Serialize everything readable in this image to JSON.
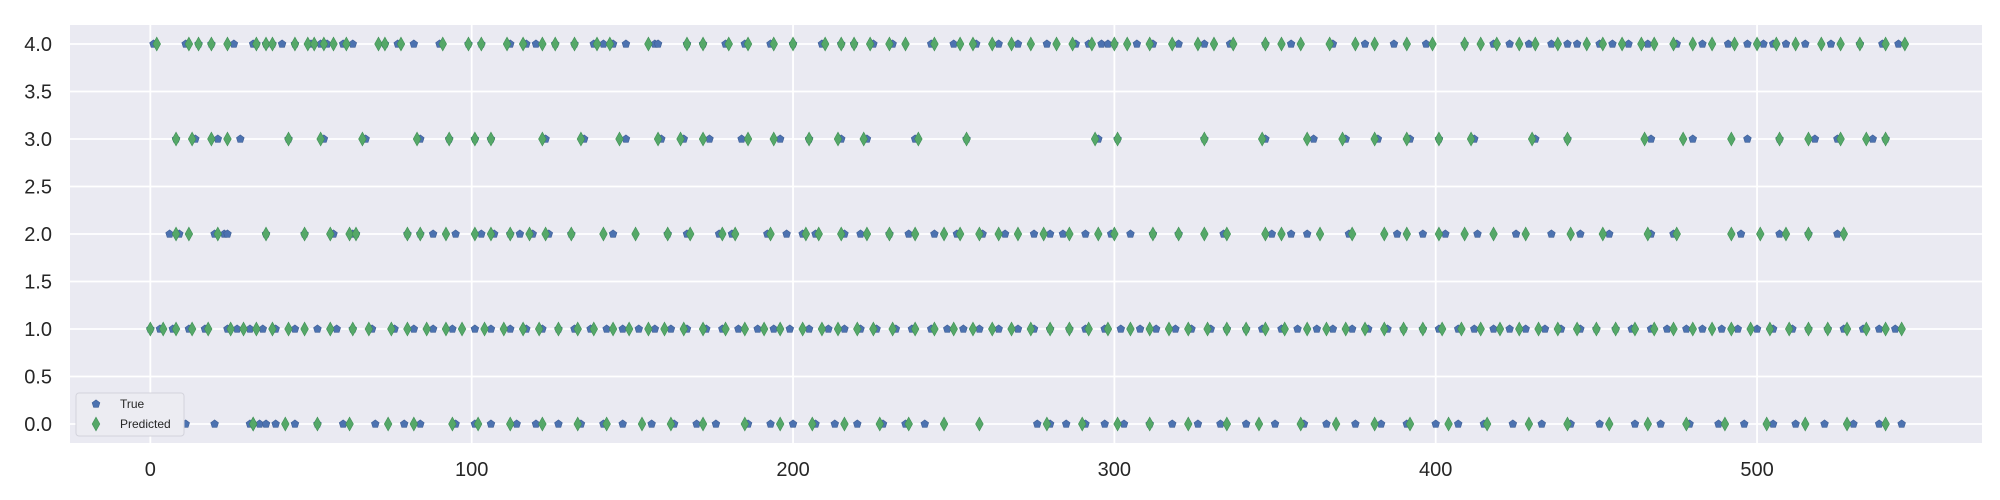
{
  "chart_data": {
    "type": "scatter",
    "title": "",
    "xlabel": "",
    "ylabel": "",
    "xlim": [
      -25,
      570
    ],
    "ylim": [
      -0.2,
      4.2
    ],
    "x_ticks": [
      0,
      100,
      200,
      300,
      400,
      500
    ],
    "y_ticks": [
      0.0,
      0.5,
      1.0,
      1.5,
      2.0,
      2.5,
      3.0,
      3.5,
      4.0
    ],
    "x_tick_labels": [
      "0",
      "100",
      "200",
      "300",
      "400",
      "500"
    ],
    "y_tick_labels": [
      "0.0",
      "0.5",
      "1.0",
      "1.5",
      "2.0",
      "2.5",
      "3.0",
      "3.5",
      "4.0"
    ],
    "grid": true,
    "legend_position": "bottom-left",
    "background": "#eaeaf2",
    "grid_color": "#ffffff",
    "colors": {
      "true": "#4c72b0",
      "predicted": "#55a868"
    },
    "legend": [
      {
        "key": "true",
        "label": "True",
        "marker": "pentagon"
      },
      {
        "key": "predicted",
        "label": "Predicted",
        "marker": "diamond"
      }
    ],
    "series": [
      {
        "key": "true",
        "name": "True",
        "marker": "pentagon",
        "points_by_class": {
          "4": [
            1,
            11,
            15,
            19,
            26,
            32,
            33,
            36,
            38,
            41,
            45,
            50,
            53,
            55,
            60,
            63,
            73,
            77,
            82,
            90,
            99,
            103,
            112,
            117,
            120,
            126,
            132,
            138,
            141,
            144,
            148,
            157,
            158,
            167,
            172,
            179,
            185,
            193,
            200,
            209,
            215,
            219,
            225,
            231,
            243,
            250,
            257,
            264,
            270,
            279,
            288,
            292,
            296,
            298,
            300,
            307,
            312,
            320,
            328,
            336,
            347,
            355,
            368,
            378,
            387,
            397,
            409,
            418,
            423,
            429,
            436,
            441,
            444,
            451,
            455,
            460,
            466,
            475,
            483,
            491,
            497,
            502,
            505,
            509,
            515,
            523,
            532,
            539,
            544
          ],
          "3": [
            8,
            14,
            21,
            28,
            43,
            54,
            67,
            84,
            93,
            101,
            106,
            123,
            135,
            148,
            159,
            166,
            174,
            184,
            196,
            205,
            215,
            223,
            238,
            254,
            295,
            301,
            328,
            347,
            362,
            372,
            382,
            392,
            401,
            412,
            431,
            441,
            467,
            480,
            497,
            507,
            518,
            525,
            536,
            540
          ],
          "2": [
            6,
            9,
            20,
            23,
            24,
            36,
            48,
            57,
            63,
            64,
            80,
            84,
            88,
            95,
            103,
            107,
            112,
            115,
            119,
            124,
            131,
            144,
            161,
            167,
            177,
            181,
            192,
            198,
            203,
            207,
            216,
            221,
            230,
            236,
            244,
            251,
            259,
            266,
            275,
            280,
            284,
            291,
            299,
            305,
            312,
            320,
            334,
            349,
            355,
            360,
            373,
            388,
            396,
            403,
            413,
            425,
            436,
            445,
            454,
            467,
            474,
            495,
            507,
            516,
            525
          ],
          "1": [
            0,
            3,
            7,
            12,
            17,
            24,
            27,
            31,
            35,
            39,
            45,
            52,
            58,
            63,
            69,
            76,
            82,
            88,
            94,
            101,
            106,
            112,
            117,
            122,
            127,
            132,
            137,
            142,
            147,
            152,
            157,
            162,
            167,
            173,
            178,
            183,
            189,
            194,
            199,
            205,
            211,
            216,
            221,
            226,
            232,
            237,
            243,
            248,
            253,
            258,
            264,
            270,
            275,
            280,
            286,
            291,
            297,
            302,
            308,
            313,
            319,
            324,
            330,
            335,
            341,
            346,
            352,
            357,
            363,
            368,
            374,
            379,
            385,
            390,
            396,
            401,
            407,
            412,
            418,
            423,
            428,
            434,
            439,
            445,
            450,
            456,
            461,
            467,
            472,
            478,
            483,
            489,
            494,
            500,
            505,
            511,
            516,
            522,
            527,
            533,
            538,
            543
          ],
          "0": [
            11,
            20,
            31,
            34,
            36,
            39,
            45,
            52,
            60,
            70,
            79,
            84,
            95,
            101,
            106,
            114,
            120,
            127,
            134,
            141,
            147,
            156,
            163,
            170,
            176,
            186,
            193,
            200,
            207,
            213,
            220,
            228,
            235,
            241,
            276,
            280,
            285,
            291,
            297,
            303,
            311,
            318,
            326,
            333,
            341,
            350,
            359,
            366,
            375,
            383,
            391,
            400,
            407,
            415,
            424,
            433,
            442,
            451,
            462,
            470,
            479,
            488,
            496,
            505,
            512,
            521,
            530,
            538,
            545
          ]
        }
      },
      {
        "key": "predicted",
        "name": "Predicted",
        "marker": "diamond",
        "points_by_class": {
          "4": [
            2,
            12,
            15,
            19,
            24,
            33,
            36,
            38,
            45,
            49,
            51,
            54,
            57,
            61,
            71,
            73,
            78,
            91,
            99,
            103,
            111,
            116,
            122,
            126,
            132,
            139,
            143,
            155,
            167,
            172,
            180,
            186,
            194,
            200,
            210,
            215,
            219,
            224,
            230,
            235,
            244,
            252,
            256,
            262,
            268,
            274,
            282,
            287,
            293,
            300,
            304,
            311,
            318,
            326,
            331,
            337,
            347,
            352,
            358,
            367,
            375,
            381,
            391,
            399,
            409,
            414,
            419,
            426,
            431,
            438,
            447,
            452,
            458,
            464,
            468,
            474,
            480,
            486,
            493,
            500,
            506,
            512,
            520,
            526,
            532,
            540,
            546
          ],
          "3": [
            8,
            13,
            19,
            24,
            43,
            53,
            66,
            83,
            93,
            101,
            106,
            122,
            134,
            146,
            158,
            165,
            172,
            186,
            194,
            205,
            214,
            222,
            239,
            254,
            294,
            301,
            328,
            346,
            360,
            371,
            381,
            391,
            401,
            411,
            430,
            441,
            465,
            477,
            492,
            507,
            516,
            526,
            534,
            540
          ],
          "2": [
            8,
            12,
            21,
            36,
            48,
            56,
            62,
            64,
            80,
            84,
            92,
            101,
            106,
            112,
            118,
            123,
            131,
            141,
            151,
            161,
            168,
            178,
            182,
            193,
            204,
            208,
            215,
            223,
            230,
            238,
            247,
            252,
            258,
            264,
            270,
            278,
            286,
            295,
            300,
            312,
            320,
            328,
            335,
            347,
            352,
            364,
            374,
            384,
            391,
            401,
            409,
            418,
            428,
            442,
            452,
            466,
            475,
            492,
            501,
            509,
            516,
            527
          ],
          "1": [
            0,
            4,
            8,
            13,
            18,
            25,
            29,
            33,
            38,
            43,
            48,
            56,
            63,
            68,
            75,
            80,
            86,
            92,
            97,
            104,
            110,
            116,
            121,
            127,
            133,
            138,
            144,
            149,
            155,
            160,
            166,
            172,
            179,
            185,
            191,
            196,
            203,
            209,
            214,
            220,
            225,
            231,
            238,
            244,
            250,
            256,
            262,
            268,
            274,
            280,
            286,
            292,
            298,
            305,
            311,
            317,
            323,
            329,
            335,
            341,
            347,
            353,
            360,
            366,
            372,
            378,
            384,
            390,
            396,
            402,
            408,
            414,
            420,
            426,
            432,
            438,
            444,
            450,
            456,
            462,
            468,
            474,
            480,
            486,
            492,
            498,
            504,
            510,
            516,
            522,
            528,
            534,
            540,
            545
          ],
          "0": [
            32,
            32,
            42,
            52,
            62,
            74,
            82,
            94,
            102,
            112,
            122,
            133,
            142,
            153,
            162,
            172,
            185,
            196,
            206,
            216,
            227,
            236,
            247,
            258,
            279,
            290,
            301,
            311,
            323,
            335,
            345,
            358,
            369,
            381,
            392,
            404,
            416,
            429,
            441,
            454,
            466,
            478,
            490,
            503,
            515,
            528,
            540
          ]
        }
      }
    ]
  }
}
